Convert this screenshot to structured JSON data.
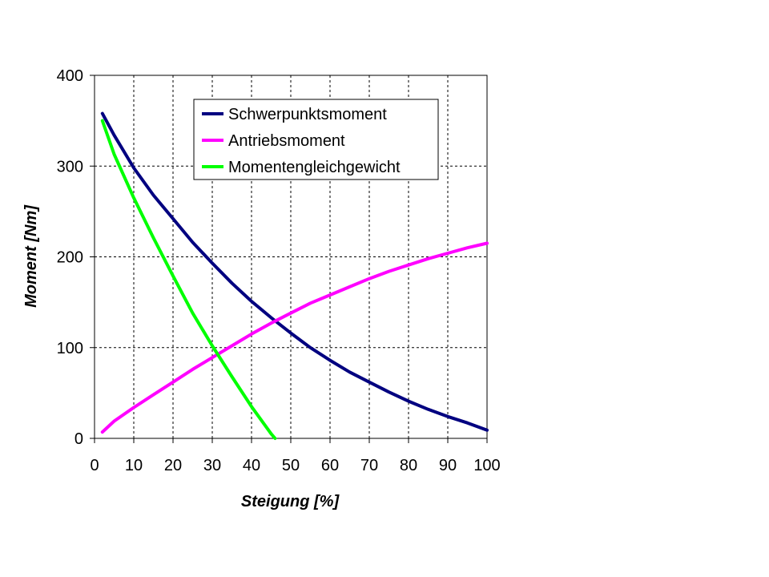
{
  "chart_data": {
    "type": "line",
    "xlabel": "Steigung [%]",
    "ylabel": "Moment [Nm]",
    "xlim": [
      0,
      100
    ],
    "ylim": [
      0,
      400
    ],
    "x_ticks": [
      0,
      10,
      20,
      30,
      40,
      50,
      60,
      70,
      80,
      90,
      100
    ],
    "y_ticks": [
      0,
      100,
      200,
      300,
      400
    ],
    "grid": true,
    "legend_position": "top-right",
    "series": [
      {
        "name": "Schwerpunktsmoment",
        "color": "#000080",
        "x": [
          2,
          5,
          10,
          15,
          20,
          25,
          30,
          35,
          40,
          45,
          50,
          55,
          60,
          65,
          70,
          75,
          80,
          85,
          90,
          95,
          100
        ],
        "y": [
          358,
          334,
          298,
          268,
          242,
          216,
          193,
          171,
          151,
          133,
          116,
          100,
          86,
          73,
          62,
          51,
          41,
          32,
          24,
          17,
          9
        ]
      },
      {
        "name": "Antriebsmoment",
        "color": "#ff00ff",
        "x": [
          2,
          5,
          10,
          15,
          20,
          25,
          30,
          35,
          40,
          45,
          50,
          55,
          60,
          65,
          70,
          75,
          80,
          85,
          90,
          95,
          100
        ],
        "y": [
          7,
          19,
          34,
          48,
          62,
          76,
          89,
          102,
          115,
          127,
          138,
          149,
          158,
          167,
          176,
          184,
          191,
          198,
          204,
          210,
          215
        ]
      },
      {
        "name": "Momentengleichgewicht",
        "color": "#00ff00",
        "x": [
          2,
          5,
          10,
          15,
          20,
          25,
          30,
          35,
          40,
          45,
          46
        ],
        "y": [
          350,
          313,
          265,
          221,
          179,
          138,
          102,
          68,
          35,
          5,
          0
        ]
      }
    ]
  }
}
